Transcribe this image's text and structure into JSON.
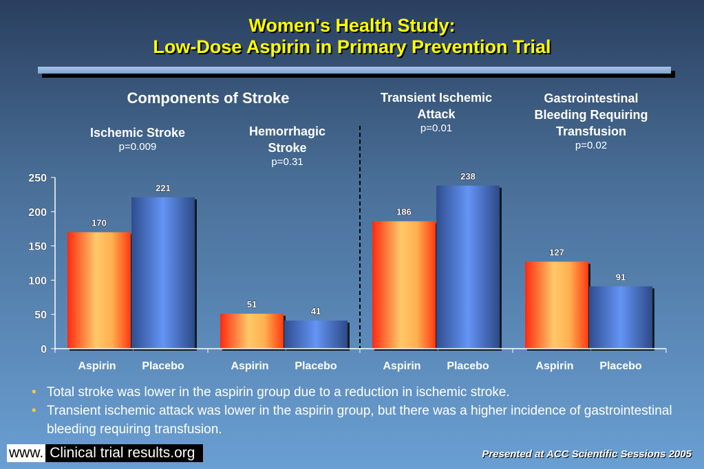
{
  "title": {
    "line1": "Women's Health Study:",
    "line2": "Low-Dose Aspirin in Primary Prevention Trial"
  },
  "headers": {
    "components": "Components of Stroke",
    "ischemic": "Ischemic Stroke",
    "ischemic_p": "p=0.009",
    "hemorrhagic": "Hemorrhagic Stroke",
    "hemorrhagic_p": "p=0.31",
    "tia": "Transient Ischemic Attack",
    "tia_p": "p=0.01",
    "gi": "Gastrointestinal Bleeding Requiring Transfusion",
    "gi_p": "p=0.02"
  },
  "chart_data": {
    "type": "bar",
    "ylim": [
      0,
      250
    ],
    "yticks": [
      0,
      50,
      100,
      150,
      200,
      250
    ],
    "groups": [
      "Ischemic Stroke",
      "Hemorrhagic Stroke",
      "Transient Ischemic Attack",
      "Gastrointestinal Bleeding Requiring Transfusion"
    ],
    "series": [
      {
        "name": "Aspirin",
        "values": [
          170,
          51,
          186,
          127
        ],
        "color": "#ffc060"
      },
      {
        "name": "Placebo",
        "values": [
          221,
          41,
          238,
          91
        ],
        "color": "#5f8ff0"
      }
    ]
  },
  "bullets": [
    "Total stroke was lower in the aspirin group due to a reduction in ischemic stroke.",
    "Transient ischemic attack was lower in the aspirin group, but there was a higher incidence of gastrointestinal bleeding requiring transfusion."
  ],
  "footer": {
    "www": "www.",
    "site": "Clinical trial results.org",
    "presented": "Presented at ACC Scientific Sessions 2005"
  }
}
